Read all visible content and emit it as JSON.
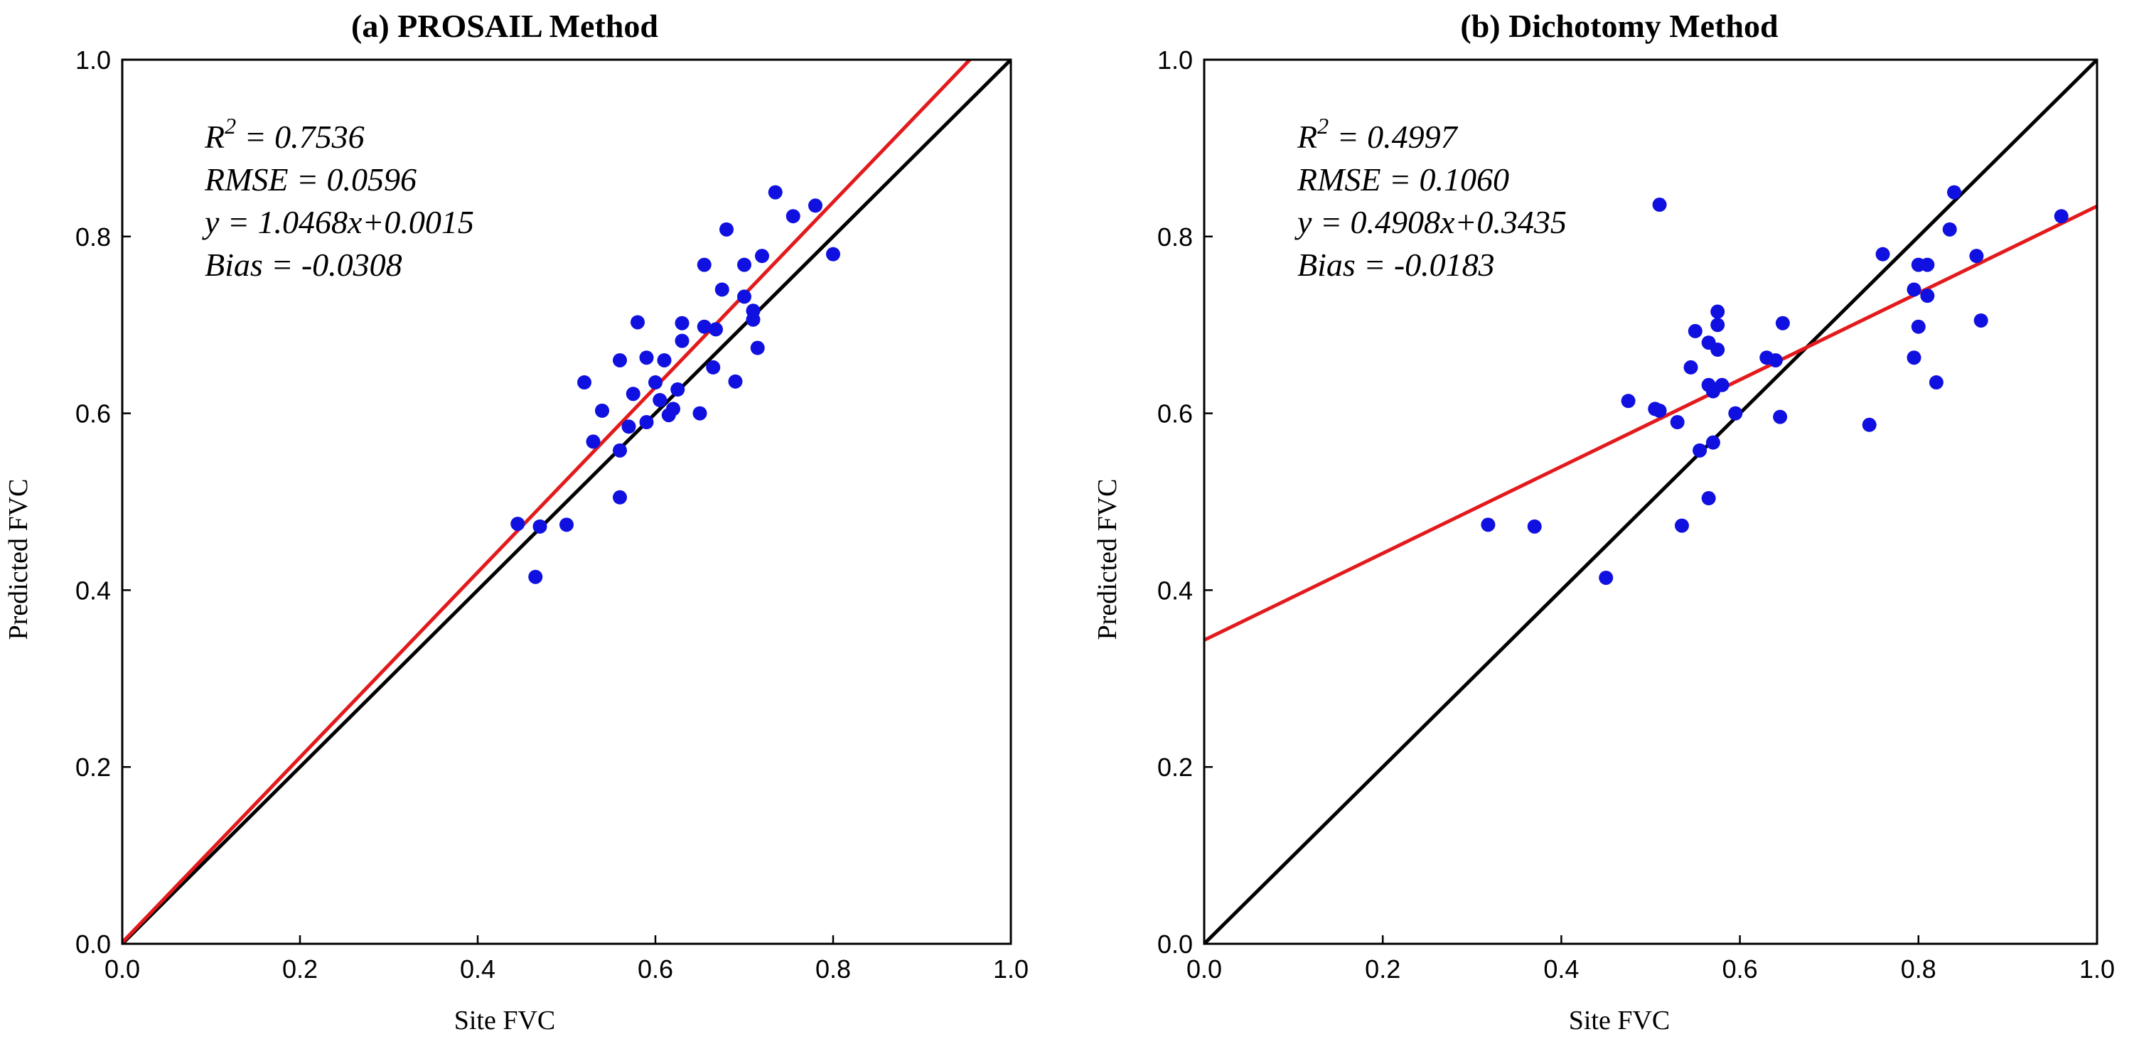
{
  "chart_data": [
    {
      "type": "scatter",
      "title": "(a) PROSAIL Method",
      "xlabel": "Site FVC",
      "ylabel": "Predicted FVC",
      "xlim": [
        0.0,
        1.0
      ],
      "ylim": [
        0.0,
        1.0
      ],
      "xticks": [
        "0.0",
        "0.2",
        "0.4",
        "0.6",
        "0.8",
        "1.0"
      ],
      "yticks": [
        "0.0",
        "0.2",
        "0.4",
        "0.6",
        "0.8",
        "1.0"
      ],
      "grid": false,
      "stats": {
        "r2_label": "R",
        "r2_sup": "2",
        "r2_value": " = 0.7536",
        "rmse": "RMSE = 0.0596",
        "equation": "y = 1.0468x+0.0015",
        "bias": "Bias = -0.0308"
      },
      "fit_line": {
        "slope": 1.0468,
        "intercept": 0.0015,
        "color": "#e31a1c"
      },
      "identity_line": {
        "color": "#000000"
      },
      "point_color": "#1010e0",
      "points": [
        [
          0.445,
          0.475
        ],
        [
          0.465,
          0.415
        ],
        [
          0.47,
          0.472
        ],
        [
          0.5,
          0.474
        ],
        [
          0.53,
          0.568
        ],
        [
          0.52,
          0.635
        ],
        [
          0.54,
          0.603
        ],
        [
          0.56,
          0.66
        ],
        [
          0.56,
          0.558
        ],
        [
          0.56,
          0.505
        ],
        [
          0.575,
          0.622
        ],
        [
          0.58,
          0.703
        ],
        [
          0.57,
          0.585
        ],
        [
          0.59,
          0.663
        ],
        [
          0.59,
          0.59
        ],
        [
          0.6,
          0.635
        ],
        [
          0.605,
          0.615
        ],
        [
          0.61,
          0.66
        ],
        [
          0.615,
          0.598
        ],
        [
          0.62,
          0.605
        ],
        [
          0.625,
          0.627
        ],
        [
          0.63,
          0.682
        ],
        [
          0.63,
          0.702
        ],
        [
          0.65,
          0.6
        ],
        [
          0.655,
          0.698
        ],
        [
          0.655,
          0.768
        ],
        [
          0.665,
          0.652
        ],
        [
          0.668,
          0.695
        ],
        [
          0.675,
          0.74
        ],
        [
          0.68,
          0.808
        ],
        [
          0.69,
          0.636
        ],
        [
          0.7,
          0.732
        ],
        [
          0.7,
          0.768
        ],
        [
          0.71,
          0.706
        ],
        [
          0.71,
          0.716
        ],
        [
          0.715,
          0.674
        ],
        [
          0.72,
          0.778
        ],
        [
          0.735,
          0.85
        ],
        [
          0.755,
          0.823
        ],
        [
          0.78,
          0.835
        ],
        [
          0.8,
          0.78
        ]
      ]
    },
    {
      "type": "scatter",
      "title": "(b) Dichotomy Method",
      "xlabel": "Site FVC",
      "ylabel": "Predicted FVC",
      "xlim": [
        0.0,
        1.0
      ],
      "ylim": [
        0.0,
        1.0
      ],
      "xticks": [
        "0.0",
        "0.2",
        "0.4",
        "0.6",
        "0.8",
        "1.0"
      ],
      "yticks": [
        "0.0",
        "0.2",
        "0.4",
        "0.6",
        "0.8",
        "1.0"
      ],
      "grid": false,
      "stats": {
        "r2_label": "R",
        "r2_sup": "2",
        "r2_value": " = 0.4997",
        "rmse": "RMSE = 0.1060",
        "equation": "y = 0.4908x+0.3435",
        "bias": "Bias = -0.0183"
      },
      "fit_line": {
        "slope": 0.4908,
        "intercept": 0.3435,
        "color": "#e31a1c"
      },
      "identity_line": {
        "color": "#000000"
      },
      "point_color": "#1010e0",
      "points": [
        [
          0.318,
          0.474
        ],
        [
          0.37,
          0.472
        ],
        [
          0.45,
          0.414
        ],
        [
          0.475,
          0.614
        ],
        [
          0.505,
          0.605
        ],
        [
          0.51,
          0.603
        ],
        [
          0.51,
          0.836
        ],
        [
          0.53,
          0.59
        ],
        [
          0.535,
          0.473
        ],
        [
          0.545,
          0.652
        ],
        [
          0.55,
          0.693
        ],
        [
          0.555,
          0.558
        ],
        [
          0.565,
          0.68
        ],
        [
          0.565,
          0.632
        ],
        [
          0.565,
          0.504
        ],
        [
          0.57,
          0.567
        ],
        [
          0.57,
          0.625
        ],
        [
          0.575,
          0.672
        ],
        [
          0.575,
          0.7
        ],
        [
          0.575,
          0.715
        ],
        [
          0.58,
          0.632
        ],
        [
          0.595,
          0.6
        ],
        [
          0.63,
          0.663
        ],
        [
          0.64,
          0.66
        ],
        [
          0.645,
          0.596
        ],
        [
          0.648,
          0.702
        ],
        [
          0.745,
          0.587
        ],
        [
          0.76,
          0.78
        ],
        [
          0.795,
          0.663
        ],
        [
          0.795,
          0.74
        ],
        [
          0.8,
          0.698
        ],
        [
          0.8,
          0.768
        ],
        [
          0.81,
          0.768
        ],
        [
          0.81,
          0.733
        ],
        [
          0.82,
          0.635
        ],
        [
          0.835,
          0.808
        ],
        [
          0.84,
          0.85
        ],
        [
          0.865,
          0.778
        ],
        [
          0.87,
          0.705
        ],
        [
          0.96,
          0.823
        ]
      ]
    }
  ]
}
